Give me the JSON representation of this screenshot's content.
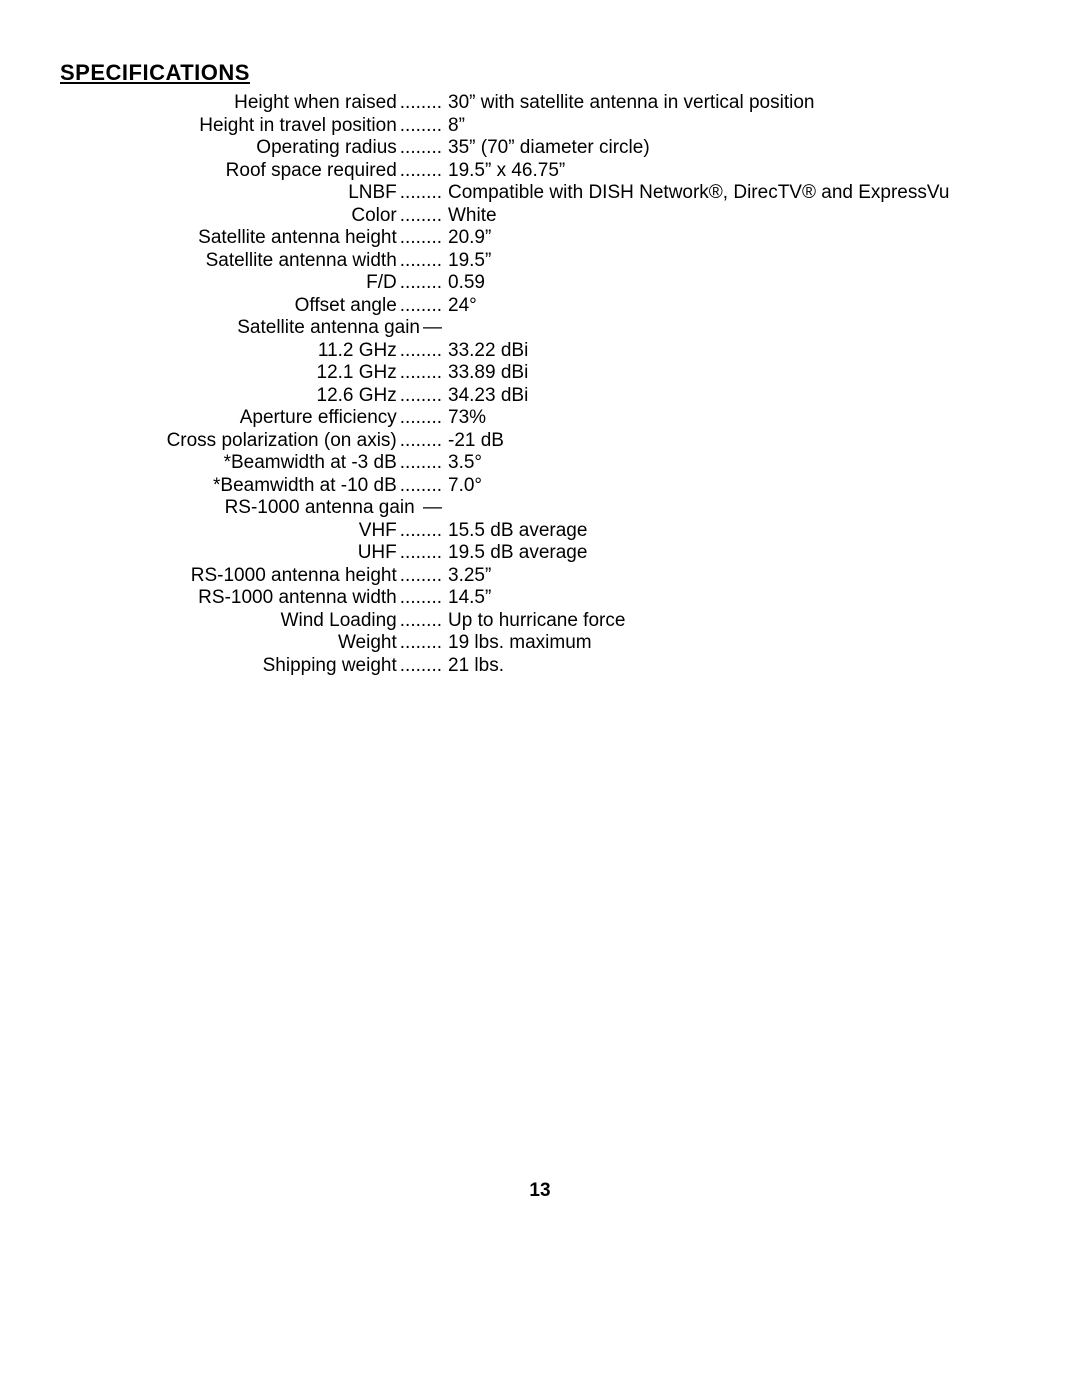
{
  "heading": "SPECIFICATIONS",
  "page_number": "13",
  "dots": "........",
  "dash": "—",
  "long_dash": "—",
  "rows": [
    {
      "label": "Height when raised",
      "sep": "dots",
      "value": "30” with satellite antenna in vertical position"
    },
    {
      "label": "Height in travel position",
      "sep": "dots",
      "value": "8”"
    },
    {
      "label": "Operating radius",
      "sep": "dots",
      "value": "35” (70” diameter circle)"
    },
    {
      "label": "Roof space required",
      "sep": "dots",
      "value": "19.5” x 46.75”"
    },
    {
      "label": "LNBF",
      "sep": "dots",
      "value": "Compatible with DISH Network®, DirecTV® and ExpressVu"
    },
    {
      "label": "Color",
      "sep": "dots",
      "value": "White"
    },
    {
      "label": "Satellite antenna height",
      "sep": "dots",
      "value": "20.9”"
    },
    {
      "label": "Satellite antenna width",
      "sep": "dots",
      "value": "19.5”"
    },
    {
      "label": "F/D",
      "sep": "dots",
      "value": "0.59"
    },
    {
      "label": "Offset angle",
      "sep": "dots",
      "value": "24°"
    },
    {
      "label": "Satellite antenna gain",
      "sep": "dash",
      "value": ""
    },
    {
      "label": "11.2 GHz",
      "sep": "dots",
      "value": "33.22 dBi"
    },
    {
      "label": "12.1 GHz",
      "sep": "dots",
      "value": "33.89 dBi"
    },
    {
      "label": "12.6 GHz",
      "sep": "dots",
      "value": "34.23 dBi"
    },
    {
      "label": "Aperture efficiency",
      "sep": "dots",
      "value": "73%"
    },
    {
      "label": "Cross polarization (on axis)",
      "sep": "dots",
      "value": "-21 dB"
    },
    {
      "label": "*Beamwidth at -3 dB",
      "sep": "dots",
      "value": "3.5°"
    },
    {
      "label": "*Beamwidth at -10 dB",
      "sep": "dots",
      "value": "7.0°"
    },
    {
      "label": "RS-1000 antenna gain ",
      "sep": "long_dash",
      "value": ""
    },
    {
      "label": "VHF",
      "sep": "dots",
      "value": "15.5 dB average"
    },
    {
      "label": "UHF",
      "sep": "dots",
      "value": "19.5 dB average"
    },
    {
      "label": "RS-1000 antenna height",
      "sep": "dots",
      "value": "3.25”"
    },
    {
      "label": "RS-1000 antenna width",
      "sep": "dots",
      "value": "14.5”"
    },
    {
      "label": "Wind Loading",
      "sep": "dots",
      "value": "Up to hurricane force"
    },
    {
      "label": "Weight",
      "sep": "dots",
      "value": "19 lbs. maximum"
    },
    {
      "label": "Shipping weight",
      "sep": "dots",
      "value": "21 lbs."
    }
  ]
}
